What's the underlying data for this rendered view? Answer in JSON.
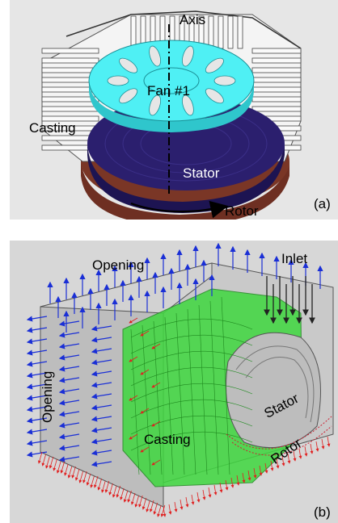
{
  "panel_a": {
    "labels": {
      "axis": "Axis",
      "fan": "Fan #1",
      "casting": "Casting",
      "stator": "Stator",
      "rotor": "Rotor",
      "tag": "(a)"
    },
    "colors": {
      "fan": "#4ff0f4",
      "stator": "#2b1f6e",
      "rotor": "#7a3626",
      "casting": "#f2f2f2",
      "background": "#e6e6e6"
    }
  },
  "panel_b": {
    "labels": {
      "opening_top": "Opening",
      "opening_left": "Opening",
      "inlet": "Inlet",
      "casting": "Casting",
      "stator": "Stator",
      "rotor": "Rotor",
      "tag": "(b)"
    },
    "colors": {
      "casting_mesh": "#3fd83f",
      "inflow_arrows": "#1a2fd6",
      "outflow_arrows": "#e02020",
      "inlet_arrows": "#222222",
      "background": "#d7d7d7"
    }
  }
}
